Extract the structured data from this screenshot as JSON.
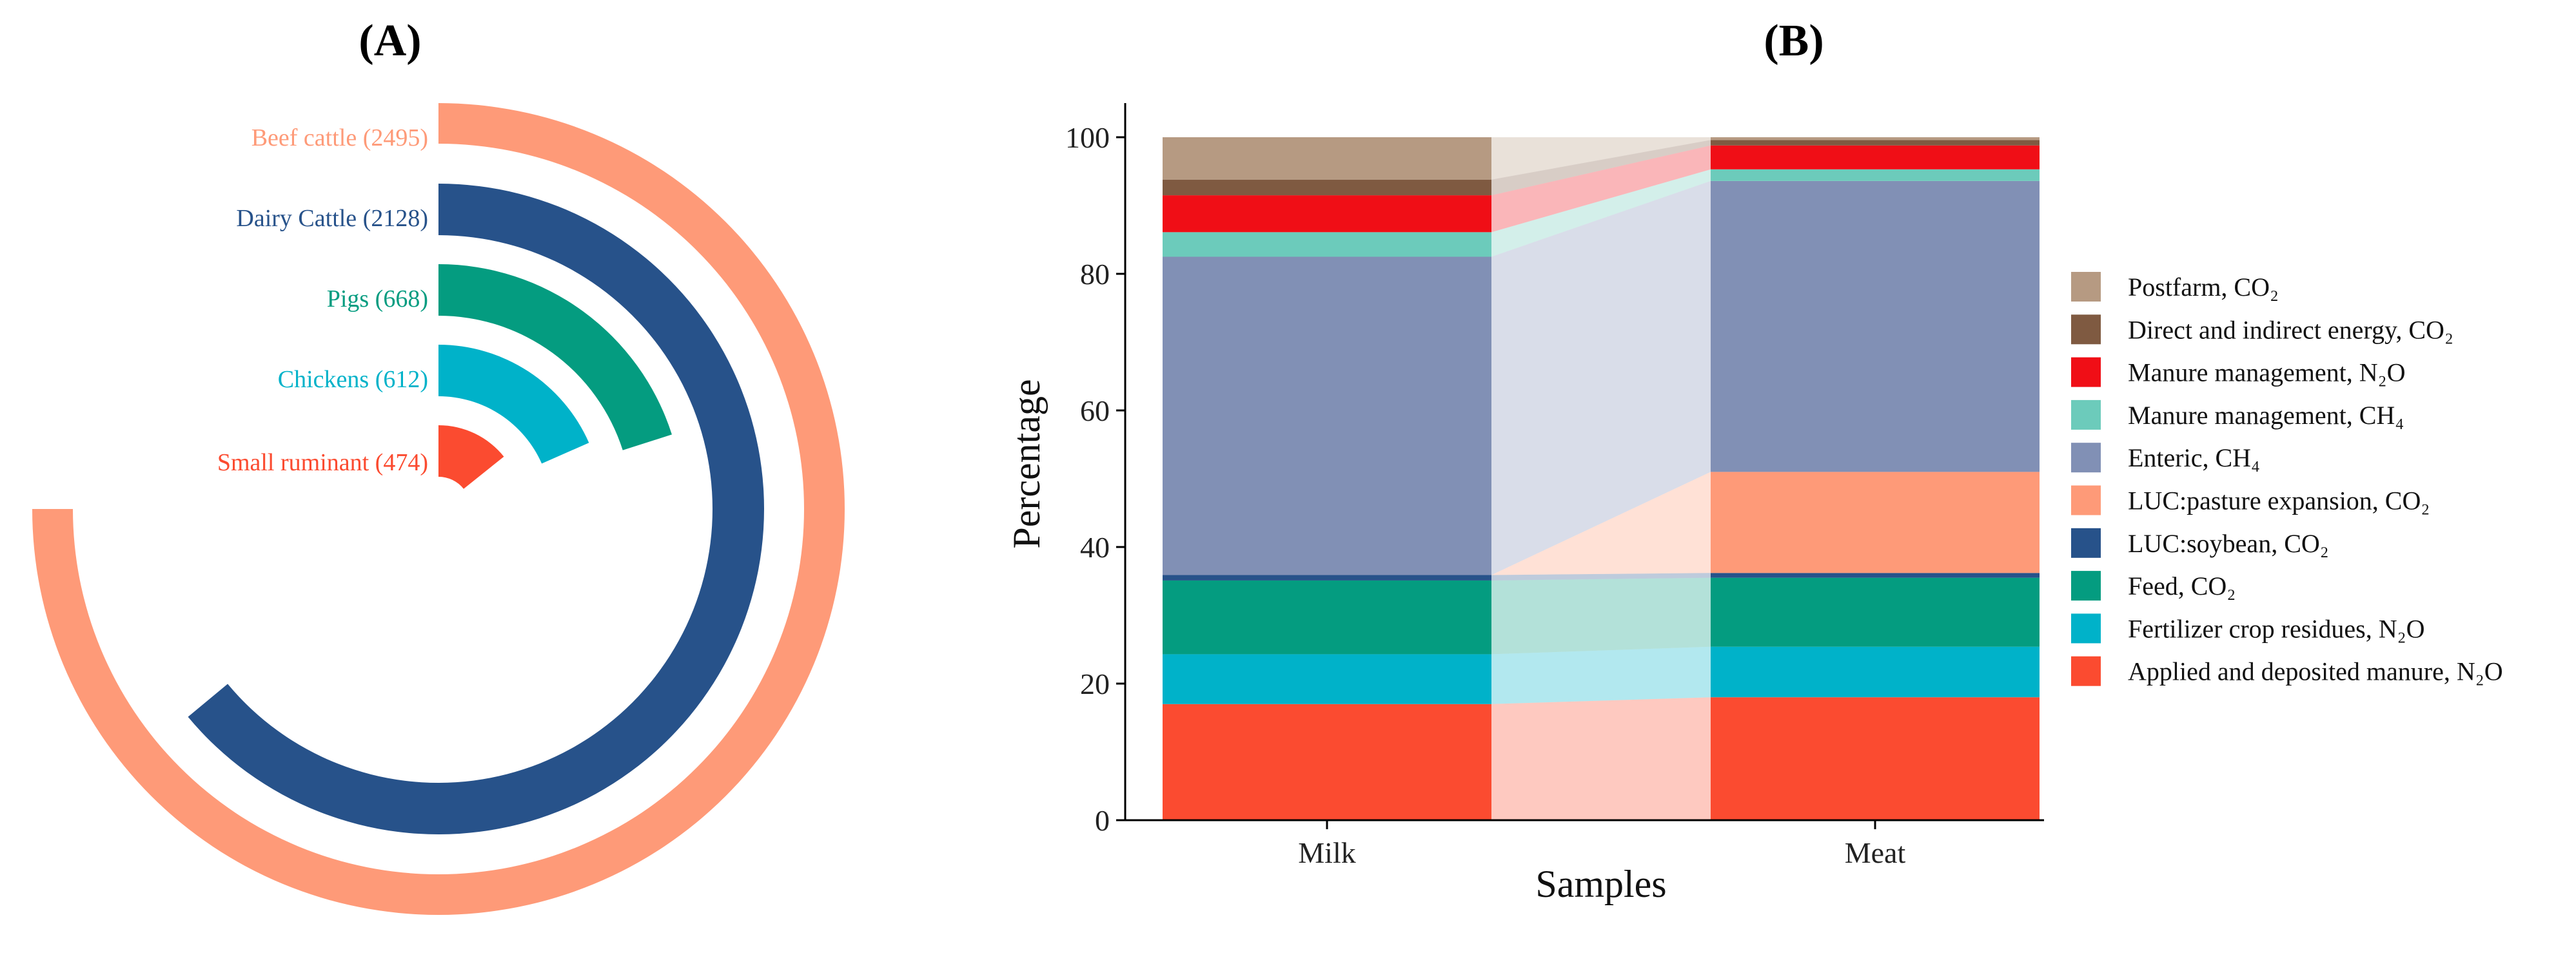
{
  "panels": {
    "a": {
      "label": "(A)"
    },
    "b": {
      "label": "(B)"
    }
  },
  "chart_data": [
    {
      "type": "radial-bar",
      "panel": "A",
      "title": "",
      "max_value": 2495,
      "series": [
        {
          "name": "Beef cattle",
          "label": "Beef cattle (2495)",
          "value": 2495,
          "color": "#FE9A78"
        },
        {
          "name": "Dairy Cattle",
          "label": "Dairy Cattle (2128)",
          "value": 2128,
          "color": "#27528A"
        },
        {
          "name": "Pigs",
          "label": "Pigs (668)",
          "value": 668,
          "color": "#049C80"
        },
        {
          "name": "Chickens",
          "label": "Chickens (612)",
          "value": 612,
          "color": "#00B2C9"
        },
        {
          "name": "Small ruminant",
          "label": "Small ruminant (474)",
          "value": 474,
          "color": "#FB4B30"
        }
      ]
    },
    {
      "type": "bar",
      "stacked": true,
      "panel": "B",
      "title": "",
      "xlabel": "Samples",
      "ylabel": "Percentage",
      "ylim": [
        0,
        105
      ],
      "yticks": [
        0,
        20,
        40,
        60,
        80,
        100
      ],
      "categories": [
        "Milk",
        "Meat"
      ],
      "series": [
        {
          "name": "Applied and deposited manure, N₂O",
          "color": "#FB4B30",
          "values": [
            17.0,
            18.0
          ]
        },
        {
          "name": "Fertilizer crop residues, N₂O",
          "color": "#00B2C9",
          "values": [
            7.3,
            7.4
          ]
        },
        {
          "name": "Feed, CO₂",
          "color": "#049C80",
          "values": [
            10.8,
            10.1
          ]
        },
        {
          "name": "LUC:soybean, CO₂",
          "color": "#27528A",
          "values": [
            0.8,
            0.7
          ]
        },
        {
          "name": "LUC:pasture expansion, CO₂",
          "color": "#FE9A78",
          "values": [
            0.0,
            14.8
          ]
        },
        {
          "name": "Enteric, CH₄",
          "color": "#8190B5",
          "values": [
            46.6,
            42.6
          ]
        },
        {
          "name": "Manure management, CH₄",
          "color": "#6CCBBB",
          "values": [
            3.6,
            1.7
          ]
        },
        {
          "name": "Manure management, N₂O",
          "color": "#F00E16",
          "values": [
            5.4,
            3.5
          ]
        },
        {
          "name": "Direct  and indirect energy, CO₂",
          "color": "#7F5A41",
          "values": [
            2.3,
            0.8
          ]
        },
        {
          "name": "Postfarm, CO₂",
          "color": "#B69A82",
          "values": [
            6.2,
            0.4
          ]
        }
      ]
    }
  ]
}
